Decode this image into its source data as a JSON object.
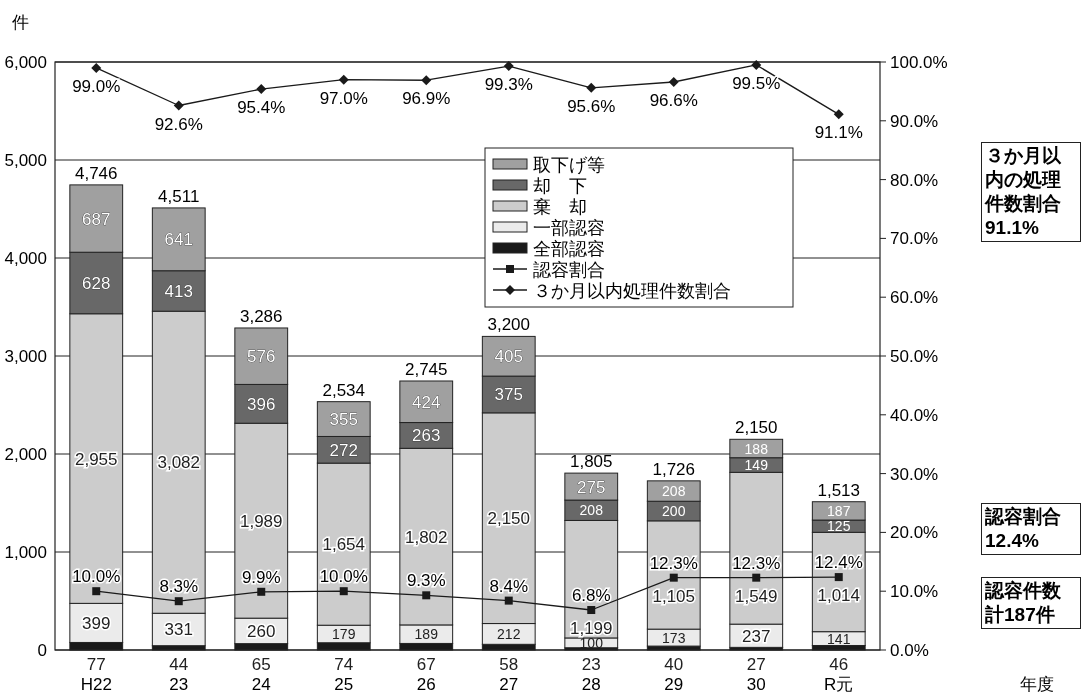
{
  "chart_data": {
    "type": "bar",
    "stacked": true,
    "ylabel": "件",
    "xlabel": "年度",
    "categories": [
      "H22",
      "23",
      "24",
      "25",
      "26",
      "27",
      "28",
      "29",
      "30",
      "R元"
    ],
    "ylim": [
      0,
      6000
    ],
    "yticks": [
      0,
      {
        "value": 1000,
        "label": "1,000"
      },
      {
        "value": 2000,
        "label": "2,000"
      },
      {
        "value": 3000,
        "label": "3,000"
      },
      {
        "value": 4000,
        "label": "4,000"
      },
      {
        "value": 5000,
        "label": "5,000"
      },
      {
        "value": 6000,
        "label": "6,000"
      }
    ],
    "y2lim": [
      0,
      100
    ],
    "y2ticks": [
      {
        "value": 0,
        "label": "0.0%"
      },
      {
        "value": 10,
        "label": "10.0%"
      },
      {
        "value": 20,
        "label": "20.0%"
      },
      {
        "value": 30,
        "label": "30.0%"
      },
      {
        "value": 40,
        "label": "40.0%"
      },
      {
        "value": 50,
        "label": "50.0%"
      },
      {
        "value": 60,
        "label": "60.0%"
      },
      {
        "value": 70,
        "label": "70.0%"
      },
      {
        "value": 80,
        "label": "80.0%"
      },
      {
        "value": 90,
        "label": "90.0%"
      },
      {
        "value": 100,
        "label": "100.0%"
      }
    ],
    "grid": "y",
    "legend": "top right",
    "data_labels": true,
    "totals": [
      "4,746",
      "4,511",
      "3,286",
      "2,534",
      "2,745",
      "3,200",
      "1,805",
      "1,726",
      "2,150",
      "1,513"
    ],
    "series": [
      {
        "name": "全部認容",
        "color": "#1a1a1a",
        "values": [
          77,
          44,
          65,
          74,
          67,
          58,
          23,
          40,
          27,
          46
        ]
      },
      {
        "name": "一部認容",
        "color": "#ebebeb",
        "values": [
          399,
          331,
          260,
          179,
          189,
          212,
          100,
          173,
          237,
          141
        ]
      },
      {
        "name": "棄　却",
        "color": "#cccccc",
        "values": [
          2955,
          3082,
          1989,
          1654,
          1802,
          2150,
          1199,
          1105,
          1549,
          1014
        ],
        "value_labels": [
          "2,955",
          "3,082",
          "1,989",
          "1,654",
          "1,802",
          "2,150",
          "1,199",
          "1,105",
          "1,549",
          "1,014"
        ]
      },
      {
        "name": "却　下",
        "color": "#686868",
        "values": [
          628,
          413,
          396,
          272,
          263,
          375,
          208,
          200,
          149,
          125
        ]
      },
      {
        "name": "取下げ等",
        "color": "#a0a0a0",
        "values": [
          687,
          641,
          576,
          355,
          424,
          405,
          275,
          208,
          188,
          187
        ]
      },
      {
        "name": "認容割合",
        "type": "line",
        "axis": "y2",
        "color": "#1a1a1a",
        "marker": "square",
        "values": [
          10.0,
          8.3,
          9.9,
          10.0,
          9.3,
          8.4,
          6.8,
          12.3,
          12.3,
          12.4
        ],
        "value_labels": [
          "10.0%",
          "8.3%",
          "9.9%",
          "10.0%",
          "9.3%",
          "8.4%",
          "6.8%",
          "12.3%",
          "12.3%",
          "12.4%"
        ]
      },
      {
        "name": "３か月以内処理件数割合",
        "type": "line",
        "axis": "y2",
        "color": "#1a1a1a",
        "marker": "diamond",
        "values": [
          99.0,
          92.6,
          95.4,
          97.0,
          96.9,
          99.3,
          95.6,
          96.6,
          99.5,
          91.1
        ],
        "value_labels": [
          "99.0%",
          "92.6%",
          "95.4%",
          "97.0%",
          "96.9%",
          "99.3%",
          "95.6%",
          "96.6%",
          "99.5%",
          "91.1%"
        ]
      }
    ],
    "annotations": [
      "３か月以内の処理件数割合91.1%",
      "認容割合12.4%",
      "認容件数計187件"
    ]
  }
}
